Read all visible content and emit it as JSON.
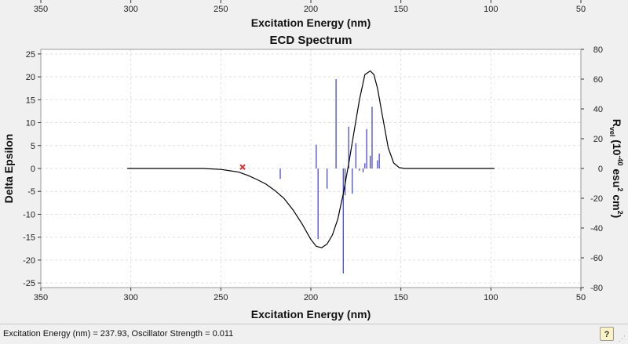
{
  "chart_data": {
    "type": "line",
    "title": "ECD Spectrum",
    "xlabel": "Excitation Energy (nm)",
    "x2label": "Excitation Energy (nm)",
    "ylabel": "Delta Epsilon",
    "y2label_parts": [
      "R",
      "vel",
      " (10",
      "-40",
      " esu",
      "2",
      " cm",
      "2",
      ")"
    ],
    "xlim": [
      350,
      50
    ],
    "ylim": [
      -26,
      26
    ],
    "y2lim": [
      -80,
      80
    ],
    "x_ticks": [
      350,
      300,
      250,
      200,
      150,
      100,
      50
    ],
    "y_ticks": [
      -25,
      -20,
      -15,
      -10,
      -5,
      0,
      5,
      10,
      15,
      20,
      25
    ],
    "y2_ticks": [
      -80,
      -60,
      -40,
      -20,
      0,
      20,
      40,
      60,
      80
    ],
    "grid": true,
    "curve": {
      "color": "#000000",
      "x": [
        302,
        260,
        250,
        245,
        240,
        235,
        230,
        225,
        220,
        215,
        210,
        205,
        200,
        197,
        194,
        191,
        188,
        185,
        182,
        179,
        176,
        173,
        170,
        167,
        165,
        163,
        160,
        157,
        154,
        151,
        148,
        140,
        130,
        120,
        98
      ],
      "y": [
        0,
        0,
        -0.2,
        -0.5,
        -0.8,
        -1.5,
        -2.4,
        -3.4,
        -4.8,
        -6.5,
        -9.0,
        -12.0,
        -15.5,
        -17.0,
        -17.3,
        -16.5,
        -14.5,
        -11.0,
        -5.5,
        1.0,
        8.0,
        15.0,
        20.5,
        21.3,
        20.5,
        17.5,
        11.0,
        4.5,
        1.2,
        0.2,
        0.0,
        0,
        0,
        0,
        0
      ]
    },
    "sticks": {
      "color": "#3a3ad0",
      "x": [
        217,
        197,
        196,
        191,
        186,
        182,
        181,
        179,
        177,
        175,
        173,
        171,
        170,
        169,
        167,
        166,
        163,
        162
      ],
      "y": [
        -7.0,
        16.0,
        -47.5,
        -13.5,
        60.0,
        -70.5,
        -18.0,
        28.0,
        -17.0,
        17.0,
        -1.5,
        -2.5,
        3.5,
        26.5,
        8.5,
        41.5,
        5.5,
        10.0
      ]
    },
    "marker": {
      "x": 237.93,
      "y": 0.3,
      "color": "#e03030"
    }
  },
  "status": {
    "text": "Excitation Energy (nm) = 237.93, Oscillator Strength = 0.011",
    "help_label": "?"
  }
}
